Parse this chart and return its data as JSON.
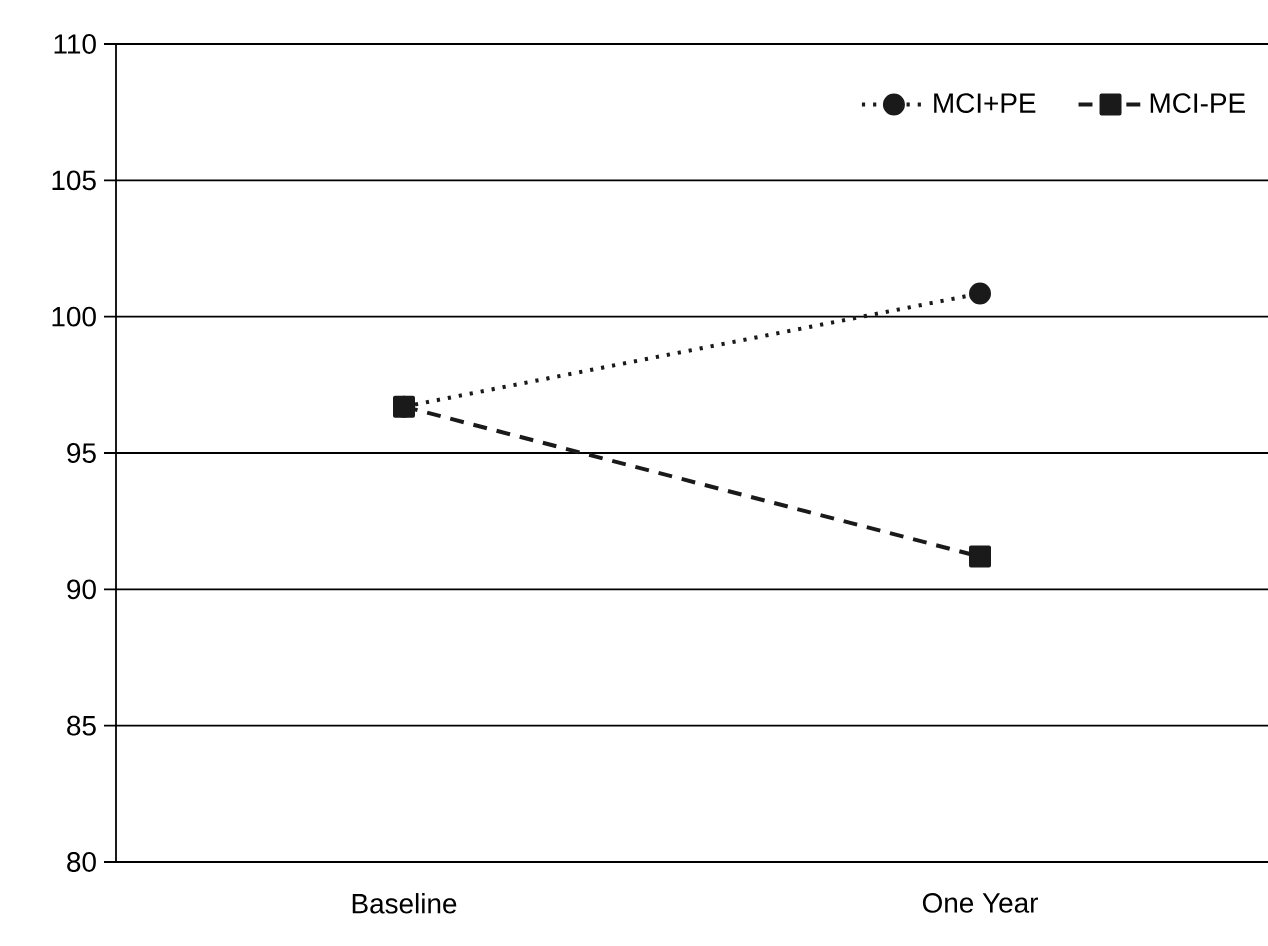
{
  "chart_data": {
    "type": "line",
    "categories": [
      "Baseline",
      "One Year"
    ],
    "series": [
      {
        "name": "MCI+PE",
        "color": "#1a1a1a",
        "values": [
          96.7,
          100.85
        ],
        "marker": "circle",
        "line_style": "dotted"
      },
      {
        "name": "MCI-PE",
        "color": "#1a1a1a",
        "values": [
          96.7,
          91.2
        ],
        "marker": "square",
        "line_style": "dashed"
      }
    ],
    "ylim": [
      80,
      110
    ],
    "yticks": [
      80,
      85,
      90,
      95,
      100,
      105,
      110
    ],
    "grid": "y",
    "legend": "top right"
  }
}
